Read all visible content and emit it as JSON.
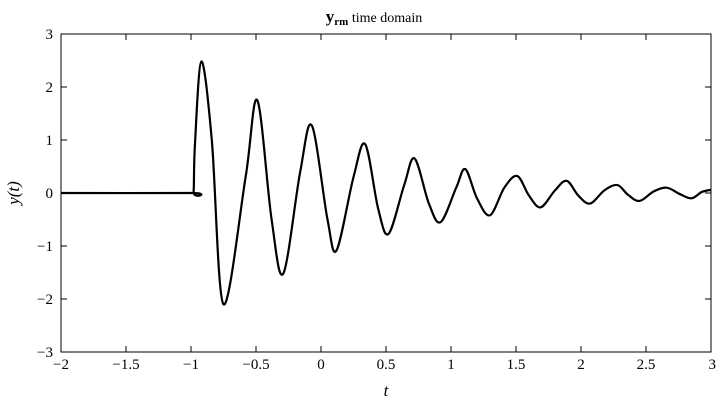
{
  "chart_data": {
    "type": "line",
    "title": {
      "main": "y",
      "subscript": "rm",
      "rest": " time domain"
    },
    "xlabel": "t",
    "ylabel": "y(t)",
    "xlim": [
      -2,
      3
    ],
    "ylim": [
      -3,
      3
    ],
    "xticks": [
      -2,
      -1.5,
      -1,
      -0.5,
      0,
      0.5,
      1,
      1.5,
      2,
      2.5,
      3
    ],
    "xtick_labels": [
      "−2",
      "−1.5",
      "−1",
      "−0.5",
      "0",
      "0.5",
      "1",
      "1.5",
      "2",
      "2.5",
      "3"
    ],
    "yticks": [
      -3,
      -2,
      -1,
      0,
      1,
      2,
      3
    ],
    "ytick_labels": [
      "−3",
      "−2",
      "−1",
      "0",
      "1",
      "2",
      "3"
    ],
    "grid": false,
    "line_color": "#000000",
    "series": [
      {
        "points": [
          [
            -2,
            0
          ],
          [
            -1,
            0
          ],
          [
            -0.98,
            0.02
          ],
          [
            -0.97,
            0.9
          ],
          [
            -0.92,
            2.48
          ],
          [
            -0.84,
            1.0
          ],
          [
            -0.75,
            -2.1
          ],
          [
            -0.58,
            0.3
          ],
          [
            -0.49,
            1.75
          ],
          [
            -0.38,
            -0.5
          ],
          [
            -0.29,
            -1.52
          ],
          [
            -0.16,
            0.4
          ],
          [
            -0.07,
            1.27
          ],
          [
            0.05,
            -0.5
          ],
          [
            0.12,
            -1.08
          ],
          [
            0.25,
            0.3
          ],
          [
            0.34,
            0.92
          ],
          [
            0.44,
            -0.3
          ],
          [
            0.52,
            -0.77
          ],
          [
            0.64,
            0.15
          ],
          [
            0.72,
            0.65
          ],
          [
            0.83,
            -0.2
          ],
          [
            0.92,
            -0.55
          ],
          [
            1.04,
            0.1
          ],
          [
            1.11,
            0.45
          ],
          [
            1.2,
            -0.1
          ],
          [
            1.3,
            -0.42
          ],
          [
            1.41,
            0.1
          ],
          [
            1.51,
            0.32
          ],
          [
            1.6,
            -0.05
          ],
          [
            1.69,
            -0.27
          ],
          [
            1.8,
            0.05
          ],
          [
            1.89,
            0.23
          ],
          [
            1.98,
            -0.05
          ],
          [
            2.07,
            -0.2
          ],
          [
            2.18,
            0.05
          ],
          [
            2.28,
            0.15
          ],
          [
            2.36,
            -0.03
          ],
          [
            2.45,
            -0.15
          ],
          [
            2.56,
            0.03
          ],
          [
            2.66,
            0.1
          ],
          [
            2.76,
            -0.02
          ],
          [
            2.85,
            -0.1
          ],
          [
            2.93,
            0.02
          ],
          [
            3.0,
            0.06
          ]
        ]
      }
    ]
  }
}
